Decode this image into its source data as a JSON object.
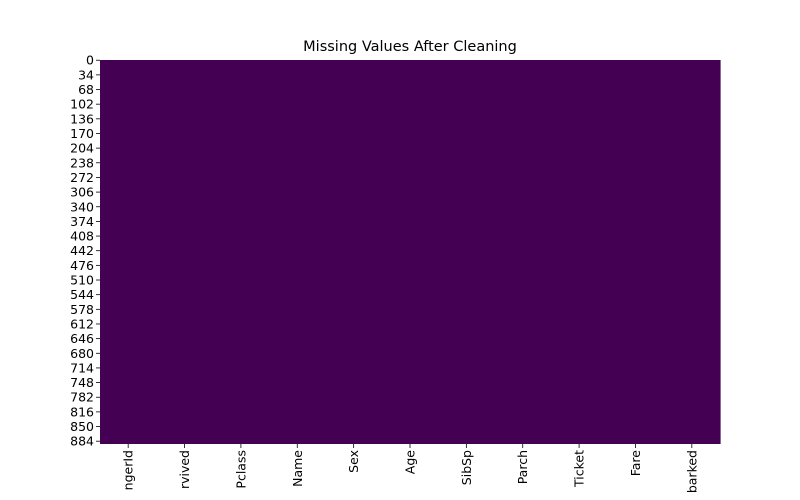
{
  "chart_data": {
    "type": "heatmap",
    "title": "Missing Values After Cleaning",
    "columns": [
      "PassengerId",
      "Survived",
      "Pclass",
      "Name",
      "Sex",
      "Age",
      "SibSp",
      "Parch",
      "Ticket",
      "Fare",
      "Embarked"
    ],
    "column_tick_labels": [
      "ngerId",
      "rvived",
      "Pclass",
      "Name",
      "Sex",
      "Age",
      "SibSp",
      "Parch",
      "Ticket",
      "Fare",
      "barked"
    ],
    "row_ticks": [
      "0",
      "34",
      "68",
      "102",
      "136",
      "170",
      "204",
      "238",
      "272",
      "306",
      "340",
      "374",
      "408",
      "442",
      "476",
      "510",
      "544",
      "578",
      "612",
      "646",
      "680",
      "714",
      "748",
      "782",
      "816",
      "850",
      "884"
    ],
    "row_count": 891,
    "missing_counts": [
      0,
      0,
      0,
      0,
      0,
      0,
      0,
      0,
      0,
      0,
      0
    ],
    "colorbar": false,
    "colors": {
      "present": "#440154",
      "missing": "#fde725"
    }
  }
}
